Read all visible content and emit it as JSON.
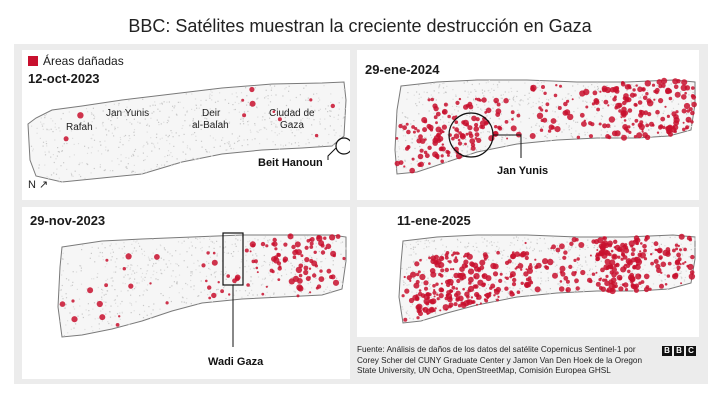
{
  "title": "BBC: Satélites muestran la creciente destrucción en Gaza",
  "legend": {
    "label": "Áreas dañadas",
    "color": "#c8102e"
  },
  "north_label": "N",
  "panels": [
    {
      "date": "12-oct-2023",
      "cities": [
        "Rafah",
        "Jan Yunis",
        "Deir",
        "al-Balah",
        "Ciudad de",
        "Gaza"
      ],
      "callout": "Beit Hanoun",
      "damage_level": 0.03
    },
    {
      "date": "29-ene-2024",
      "callout": "Jan Yunis",
      "damage_level": 0.55
    },
    {
      "date": "29-nov-2023",
      "callout": "Wadi Gaza",
      "damage_level": 0.3
    },
    {
      "date": "11-ene-2025",
      "damage_level": 0.8
    }
  ],
  "source": {
    "line1": "Fuente: Análisis de daños de los datos del satélite Copernicus Sentinel-1 por",
    "line2": "Corey Scher del CUNY Graduate Center y Jamon Van Den Hoek de la Oregon",
    "line3": "State University, UN Ocha, OpenStreetMap, Comisión Europea GHSL"
  },
  "logo": [
    "B",
    "B",
    "C"
  ]
}
